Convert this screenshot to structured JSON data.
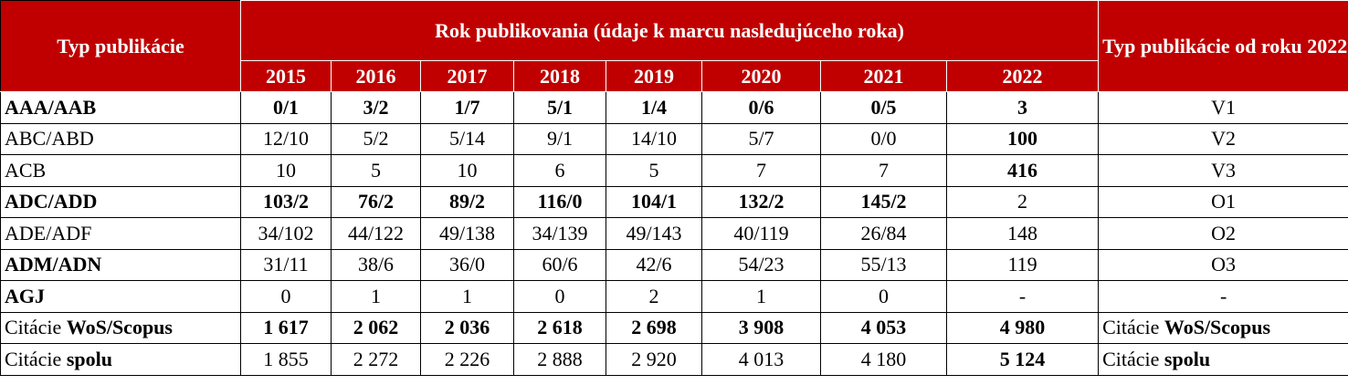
{
  "table": {
    "header": {
      "type_header": "Typ publikácie",
      "year_group": "Rok publikovania (údaje k marcu nasledujúceho roka)",
      "years": [
        "2015",
        "2016",
        "2017",
        "2018",
        "2019",
        "2020",
        "2021",
        "2022"
      ],
      "since_header": "Typ publikácie od roku 2022"
    },
    "rows": [
      {
        "label": "AAA/AAB",
        "label_bold": true,
        "cells": [
          "0/1",
          "3/2",
          "1/7",
          "5/1",
          "1/4",
          "0/6",
          "0/5",
          "3"
        ],
        "cells_bold": [
          true,
          true,
          true,
          true,
          true,
          true,
          true,
          true
        ],
        "since": "V1"
      },
      {
        "label": "ABC/ABD",
        "label_bold": false,
        "cells": [
          "12/10",
          "5/2",
          "5/14",
          "9/1",
          "14/10",
          "5/7",
          "0/0",
          "100"
        ],
        "cells_bold": [
          false,
          false,
          false,
          false,
          false,
          false,
          false,
          true
        ],
        "since": "V2"
      },
      {
        "label": "ACB",
        "label_bold": false,
        "cells": [
          "10",
          "5",
          "10",
          "6",
          "5",
          "7",
          "7",
          "416"
        ],
        "cells_bold": [
          false,
          false,
          false,
          false,
          false,
          false,
          false,
          true
        ],
        "since": "V3"
      },
      {
        "label": "ADC/ADD",
        "label_bold": true,
        "cells": [
          "103/2",
          "76/2",
          "89/2",
          "116/0",
          "104/1",
          "132/2",
          "145/2",
          "2"
        ],
        "cells_bold": [
          true,
          true,
          true,
          true,
          true,
          true,
          true,
          false
        ],
        "since": "O1"
      },
      {
        "label": "ADE/ADF",
        "label_bold": false,
        "cells": [
          "34/102",
          "44/122",
          "49/138",
          "34/139",
          "49/143",
          "40/119",
          "26/84",
          "148"
        ],
        "cells_bold": [
          false,
          false,
          false,
          false,
          false,
          false,
          false,
          false
        ],
        "since": "O2"
      },
      {
        "label": "ADM/ADN",
        "label_bold": true,
        "cells": [
          "31/11",
          "38/6",
          "36/0",
          "60/6",
          "42/6",
          "54/23",
          "55/13",
          "119"
        ],
        "cells_bold": [
          false,
          false,
          false,
          false,
          false,
          false,
          false,
          false
        ],
        "since": "O3"
      },
      {
        "label": "AGJ",
        "label_bold": true,
        "cells": [
          "0",
          "1",
          "1",
          "0",
          "2",
          "1",
          "0",
          "-"
        ],
        "cells_bold": [
          false,
          false,
          false,
          false,
          false,
          false,
          false,
          false
        ],
        "since": "-"
      },
      {
        "label": {
          "plain": "Citácie",
          "bold": "WoS/Scopus"
        },
        "cells": [
          "1 617",
          "2 062",
          "2 036",
          "2 618",
          "2 698",
          "3 908",
          "4 053",
          "4 980"
        ],
        "cells_bold": [
          true,
          true,
          true,
          true,
          true,
          true,
          true,
          true
        ],
        "since": {
          "plain": "Citácie",
          "bold": "WoS/Scopus"
        }
      },
      {
        "label": {
          "plain": "Citácie",
          "bold": "spolu"
        },
        "cells": [
          "1 855",
          "2 272",
          "2 226",
          "2 888",
          "2 920",
          "4 013",
          "4 180",
          "5 124"
        ],
        "cells_bold": [
          false,
          false,
          false,
          false,
          false,
          false,
          false,
          true
        ],
        "since": {
          "plain": "Citácie",
          "bold": "spolu"
        }
      }
    ]
  }
}
